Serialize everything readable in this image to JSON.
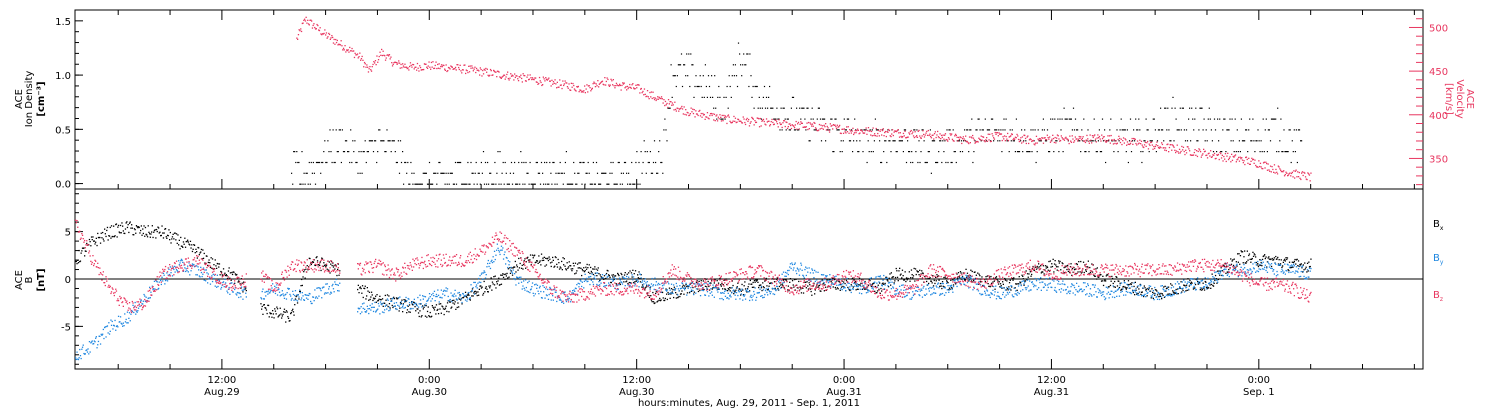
{
  "colors": {
    "black": "#000000",
    "pink": "#e8365f",
    "blue": "#1f87e0"
  },
  "xaxis": {
    "title": "hours:minutes, Aug. 29, 2011 - Sep.  1, 2011",
    "ticks": [
      {
        "h": 12,
        "line1": "12:00",
        "line2": "Aug.29"
      },
      {
        "h": 24,
        "line1": "0:00",
        "line2": "Aug.30"
      },
      {
        "h": 36,
        "line1": "12:00",
        "line2": "Aug.30"
      },
      {
        "h": 48,
        "line1": "0:00",
        "line2": "Aug.31"
      },
      {
        "h": 60,
        "line1": "12:00",
        "line2": "Aug.31"
      },
      {
        "h": 72,
        "line1": "0:00",
        "line2": "Sep. 1"
      }
    ],
    "range_hours": [
      3.5,
      81.5
    ]
  },
  "top_panel": {
    "left_label": {
      "line1": "ACE",
      "line2": "Ion Density",
      "line3": "[cm⁻³]"
    },
    "right_label": {
      "line1": "ACE",
      "line2": "Velocity",
      "line3": "[km/s]"
    },
    "left_ticks": [
      "0.0",
      "0.5",
      "1.0",
      "1.5"
    ],
    "right_ticks": [
      "350",
      "400",
      "450",
      "500"
    ],
    "left_range": [
      -0.05,
      1.6
    ],
    "right_range": [
      315,
      520
    ]
  },
  "bottom_panel": {
    "left_label": {
      "line1": "ACE",
      "line2": "B",
      "line3": "[nT]"
    },
    "ticks": [
      "-5",
      "0",
      "5"
    ],
    "range": [
      -9.5,
      9.5
    ],
    "legend": [
      {
        "label": "B",
        "sub": "x",
        "color": "#000000"
      },
      {
        "label": "B",
        "sub": "y",
        "color": "#1f87e0"
      },
      {
        "label": "B",
        "sub": "z",
        "color": "#e8365f"
      }
    ]
  },
  "chart_data": [
    {
      "type": "scatter",
      "title": "",
      "xlabel": "hours:minutes, Aug. 29, 2011 - Sep.  1, 2011",
      "x_unit": "hours after Aug. 29 00:00",
      "series": [
        {
          "name": "Velocity",
          "axis": "right",
          "x": [
            16.3,
            16.8,
            18.0,
            19.5,
            20.0,
            20.5,
            21.2,
            22.0,
            23.0,
            24.0,
            26.0,
            28.0,
            30.0,
            32.0,
            33.0,
            34.0,
            35.0,
            36.0,
            37.5,
            39.0,
            41.0,
            43.0,
            45.0,
            47.0,
            49.0,
            51.0,
            53.0,
            55.0,
            57.0,
            59.0,
            60.0,
            61.0,
            63.0,
            65.0,
            67.0,
            69.0,
            71.0,
            72.0,
            73.0,
            74.0,
            75.0
          ],
          "y": [
            487,
            510,
            492,
            473,
            466,
            450,
            472,
            459,
            455,
            457,
            453,
            447,
            441,
            434,
            430,
            440,
            434,
            431,
            416,
            404,
            396,
            392,
            389,
            386,
            382,
            380,
            378,
            372,
            376,
            371,
            374,
            372,
            374,
            368,
            362,
            356,
            349,
            345,
            338,
            333,
            329
          ]
        },
        {
          "name": "Ion Density",
          "axis": "left",
          "x": [
            16.0,
            17.0,
            18.0,
            19.0,
            20.0,
            21.0,
            22.0,
            23.0,
            24.0,
            26.0,
            28.0,
            30.0,
            32.0,
            34.0,
            35.5,
            36.5,
            37.5,
            38.0,
            39.0,
            40.0,
            41.0,
            42.0,
            43.0,
            45.0,
            47.0,
            49.0,
            51.0,
            53.0,
            55.0,
            57.0,
            59.0,
            61.0,
            63.0,
            65.0,
            67.0,
            69.0,
            71.0,
            73.0,
            74.5
          ],
          "y": [
            0.1,
            0.1,
            0.3,
            0.4,
            0.2,
            0.4,
            0.3,
            0.0,
            0.0,
            0.1,
            0.1,
            0.1,
            0.1,
            0.0,
            0.1,
            0.2,
            0.3,
            1.0,
            1.0,
            0.9,
            0.7,
            1.2,
            0.8,
            0.6,
            0.5,
            0.4,
            0.4,
            0.3,
            0.4,
            0.5,
            0.4,
            0.5,
            0.4,
            0.4,
            0.6,
            0.5,
            0.4,
            0.5,
            0.3
          ]
        }
      ],
      "ylabel": "ACE Ion Density [cm⁻³]",
      "ylabel_right": "ACE Velocity [km/s]",
      "ylim": [
        -0.05,
        1.6
      ],
      "ylim_right": [
        315,
        520
      ]
    },
    {
      "type": "scatter",
      "title": "",
      "xlabel": "hours:minutes, Aug. 29, 2011 - Sep.  1, 2011",
      "ylabel": "ACE B [nT]",
      "ylim": [
        -9.5,
        9.5
      ],
      "zero_line": true,
      "gaps_hours": [
        [
          13.4,
          14.2
        ],
        [
          18.8,
          19.8
        ]
      ],
      "series": [
        {
          "name": "Bx",
          "x": [
            3.5,
            4.5,
            5.5,
            6.5,
            7.5,
            8.5,
            9.5,
            10.5,
            11.5,
            12.5,
            13.4,
            14.2,
            15.0,
            16.0,
            17.0,
            18.0,
            18.8,
            19.8,
            21.0,
            22.0,
            23.0,
            24.0,
            25.0,
            26.0,
            27.0,
            28.0,
            29.0,
            30.0,
            31.0,
            32.0,
            33.0,
            34.0,
            35.0,
            36.0,
            37.0,
            38.0,
            39.0,
            40.0,
            41.0,
            42.0,
            43.0,
            44.0,
            45.0,
            46.0,
            47.0,
            48.0,
            49.0,
            50.0,
            51.0,
            52.0,
            53.0,
            54.0,
            55.0,
            56.0,
            57.0,
            58.0,
            59.0,
            60.0,
            61.0,
            62.0,
            63.0,
            64.0,
            65.0,
            66.0,
            67.0,
            68.0,
            69.0,
            70.0,
            71.0,
            72.0,
            73.0,
            74.0,
            75.0
          ],
          "y": [
            2.0,
            4.0,
            5.0,
            5.5,
            5.0,
            5.0,
            4.0,
            3.0,
            1.5,
            0.5,
            -1.0,
            -3.0,
            -3.5,
            -4.0,
            2.0,
            1.5,
            1.0,
            -1.0,
            -2.0,
            -2.5,
            -3.0,
            -3.5,
            -3.0,
            -2.0,
            -1.0,
            0.0,
            1.5,
            2.0,
            2.0,
            1.5,
            1.0,
            0.5,
            0.0,
            0.5,
            -2.0,
            -1.5,
            -1.0,
            -0.5,
            -0.5,
            -1.0,
            -0.5,
            -0.5,
            -0.5,
            -1.0,
            -0.5,
            -0.5,
            -0.5,
            -1.0,
            0.5,
            0.5,
            0.0,
            -0.5,
            0.5,
            0.0,
            -0.5,
            -0.5,
            1.0,
            1.5,
            1.0,
            1.5,
            0.0,
            -0.5,
            -1.0,
            -1.5,
            -1.0,
            -0.5,
            -0.5,
            1.0,
            2.5,
            2.0,
            2.0,
            1.5,
            1.5
          ]
        },
        {
          "name": "By",
          "x": [
            3.5,
            4.5,
            5.5,
            6.5,
            7.5,
            8.5,
            9.5,
            10.5,
            11.5,
            12.5,
            13.4,
            14.2,
            15.0,
            16.0,
            17.0,
            18.0,
            18.8,
            19.8,
            21.0,
            22.0,
            23.0,
            24.0,
            25.0,
            26.0,
            27.0,
            28.0,
            29.0,
            30.0,
            31.0,
            32.0,
            33.0,
            34.0,
            35.0,
            36.0,
            37.0,
            38.0,
            39.0,
            40.0,
            41.0,
            42.0,
            43.0,
            44.0,
            45.0,
            46.0,
            47.0,
            48.0,
            49.0,
            50.0,
            51.0,
            52.0,
            53.0,
            54.0,
            55.0,
            56.0,
            57.0,
            58.0,
            59.0,
            60.0,
            61.0,
            62.0,
            63.0,
            64.0,
            65.0,
            66.0,
            67.0,
            68.0,
            69.0,
            70.0,
            71.0,
            72.0,
            73.0,
            74.0,
            75.0
          ],
          "y": [
            -8.0,
            -7.0,
            -5.0,
            -4.0,
            -2.0,
            0.0,
            1.5,
            1.0,
            0.0,
            -1.0,
            -1.5,
            -1.5,
            -1.0,
            -1.5,
            -2.0,
            -1.0,
            -0.5,
            -3.0,
            -3.0,
            -2.5,
            -2.5,
            -2.0,
            -1.5,
            -2.0,
            0.0,
            3.5,
            0.0,
            -1.0,
            -1.5,
            -2.0,
            0.0,
            0.0,
            -0.5,
            0.0,
            -0.5,
            -1.0,
            -1.0,
            -1.0,
            -1.5,
            -1.5,
            -1.5,
            -1.0,
            1.5,
            0.5,
            0.0,
            -0.5,
            -1.0,
            0.0,
            -1.0,
            -1.5,
            -1.0,
            -1.0,
            0.0,
            -1.0,
            -1.5,
            -1.0,
            -0.5,
            -0.5,
            -1.0,
            -1.0,
            -1.5,
            -1.0,
            -1.0,
            -1.5,
            -1.0,
            -0.5,
            -0.5,
            1.0,
            1.0,
            1.5,
            1.0,
            1.0,
            0.5
          ]
        },
        {
          "name": "Bz",
          "x": [
            3.5,
            4.5,
            5.5,
            6.5,
            7.5,
            8.5,
            9.5,
            10.5,
            11.5,
            12.5,
            13.4,
            14.2,
            15.0,
            16.0,
            17.0,
            18.0,
            18.8,
            19.8,
            21.0,
            22.0,
            23.0,
            24.0,
            25.0,
            26.0,
            27.0,
            28.0,
            29.0,
            30.0,
            31.0,
            32.0,
            33.0,
            34.0,
            35.0,
            36.0,
            37.0,
            38.0,
            39.0,
            40.0,
            41.0,
            42.0,
            43.0,
            44.0,
            45.0,
            46.0,
            47.0,
            48.0,
            49.0,
            50.0,
            51.0,
            52.0,
            53.0,
            54.0,
            55.0,
            56.0,
            57.0,
            58.0,
            59.0,
            60.0,
            61.0,
            62.0,
            63.0,
            64.0,
            65.0,
            66.0,
            67.0,
            68.0,
            69.0,
            70.0,
            71.0,
            72.0,
            73.0,
            74.0,
            75.0
          ],
          "y": [
            6.0,
            2.0,
            -1.0,
            -3.0,
            -2.5,
            0.5,
            1.5,
            2.0,
            0.5,
            -0.5,
            0.0,
            0.5,
            -1.0,
            1.5,
            1.5,
            1.5,
            1.0,
            1.0,
            1.5,
            0.5,
            1.5,
            2.0,
            2.0,
            2.0,
            3.0,
            4.5,
            3.0,
            1.0,
            -1.0,
            -2.0,
            -1.5,
            -1.0,
            -1.0,
            -1.0,
            -1.5,
            1.0,
            0.0,
            -0.5,
            0.0,
            0.5,
            1.0,
            0.0,
            -1.0,
            -0.5,
            -0.5,
            0.5,
            0.0,
            -1.5,
            -1.5,
            -1.0,
            1.0,
            0.5,
            0.0,
            -0.5,
            0.5,
            1.0,
            1.5,
            0.5,
            1.0,
            1.0,
            1.0,
            1.0,
            1.0,
            1.0,
            1.0,
            1.5,
            1.5,
            1.5,
            0.5,
            -0.5,
            -0.5,
            -1.0,
            -2.0
          ]
        }
      ]
    }
  ]
}
